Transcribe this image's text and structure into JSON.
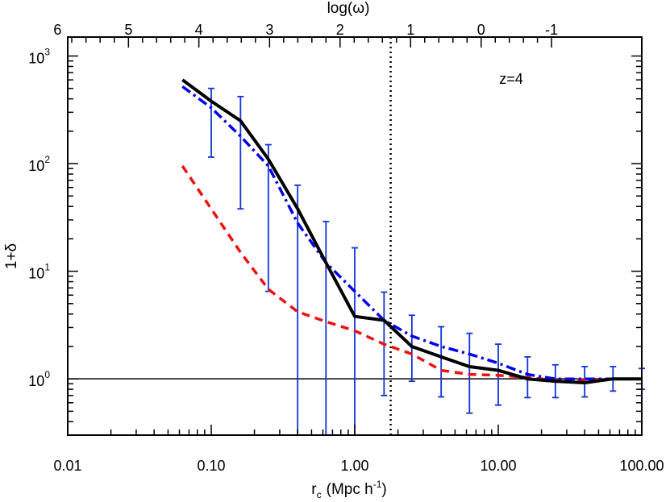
{
  "chart_data": {
    "type": "line",
    "xlabel": "r",
    "xlabel_sub": "c",
    "xlabel_unit": "(Mpc  h",
    "xlabel_sup": "-1",
    "xlabel_close": ")",
    "ylabel": "1+δ",
    "top_axis_label": "log(ω)",
    "annotation": "z=4",
    "x_scale": "log",
    "y_scale": "log",
    "xlim": [
      0.01,
      100
    ],
    "ylim": [
      0.3,
      1500
    ],
    "x_ticks": [
      {
        "value": 0.01,
        "label": "0.01"
      },
      {
        "value": 0.1,
        "label": "0.10"
      },
      {
        "value": 1,
        "label": "1.00"
      },
      {
        "value": 10,
        "label": "10.00"
      },
      {
        "value": 100,
        "label": "100.00"
      }
    ],
    "y_ticks": [
      {
        "value": 1,
        "base": "10",
        "exp": "0"
      },
      {
        "value": 10,
        "base": "10",
        "exp": "1"
      },
      {
        "value": 100,
        "base": "10",
        "exp": "2"
      },
      {
        "value": 1000,
        "base": "10",
        "exp": "3"
      }
    ],
    "top_ticks": [
      {
        "value": 0.0085,
        "label": "6"
      },
      {
        "value": 0.0265,
        "label": "5"
      },
      {
        "value": 0.082,
        "label": "4"
      },
      {
        "value": 0.255,
        "label": "3"
      },
      {
        "value": 0.79,
        "label": "2"
      },
      {
        "value": 2.45,
        "label": "1"
      },
      {
        "value": 7.6,
        "label": "0"
      },
      {
        "value": 23.5,
        "label": "-1"
      }
    ],
    "reference_y": 1,
    "vertical_line_x": 1.78,
    "series": [
      {
        "style": "solid-thick",
        "color": "#000000",
        "x": [
          0.063,
          0.1,
          0.16,
          0.25,
          0.4,
          0.63,
          1.0,
          1.6,
          2.5,
          4.0,
          6.3,
          10,
          16,
          25,
          40,
          63,
          100
        ],
        "y": [
          600,
          380,
          250,
          110,
          38,
          12,
          3.8,
          3.5,
          2.0,
          1.6,
          1.3,
          1.2,
          1.0,
          0.95,
          0.92,
          1.0,
          1.0
        ]
      },
      {
        "style": "dashdot",
        "color": "#0000ee",
        "x": [
          0.063,
          0.1,
          0.16,
          0.25,
          0.4,
          0.63,
          1.0,
          1.6,
          2.5,
          4.0,
          6.3,
          10,
          16,
          25,
          40,
          63,
          100
        ],
        "y": [
          520,
          330,
          180,
          95,
          28,
          12,
          6.5,
          3.5,
          2.5,
          2.0,
          1.7,
          1.4,
          1.1,
          1.0,
          1.0,
          1.0,
          1.0
        ]
      },
      {
        "style": "dashed",
        "color": "#ee1111",
        "x": [
          0.063,
          0.1,
          0.16,
          0.25,
          0.4,
          0.63,
          1.0,
          1.6,
          2.5,
          4.0,
          6.3,
          10,
          16,
          25,
          40,
          63,
          100
        ],
        "y": [
          95,
          38,
          15,
          6.8,
          4.2,
          3.4,
          2.8,
          2.1,
          1.7,
          1.2,
          1.1,
          1.08,
          1.03,
          0.97,
          0.98,
          1.0,
          1.0
        ]
      }
    ],
    "error_bars": {
      "color": "#1133dd",
      "x": [
        0.1,
        0.16,
        0.25,
        0.4,
        0.63,
        1.0,
        1.6,
        2.5,
        4.0,
        6.3,
        10,
        16,
        25,
        40,
        63,
        100
      ],
      "low": [
        115,
        38,
        6.5,
        0.3,
        0.3,
        0.3,
        0.7,
        0.95,
        0.68,
        0.48,
        0.57,
        0.67,
        0.67,
        0.68,
        0.77,
        0.8
      ],
      "high": [
        500,
        420,
        150,
        63,
        29,
        16.5,
        6.4,
        3.9,
        3.05,
        2.65,
        2.1,
        1.6,
        1.35,
        1.3,
        1.3,
        1.25
      ]
    }
  }
}
